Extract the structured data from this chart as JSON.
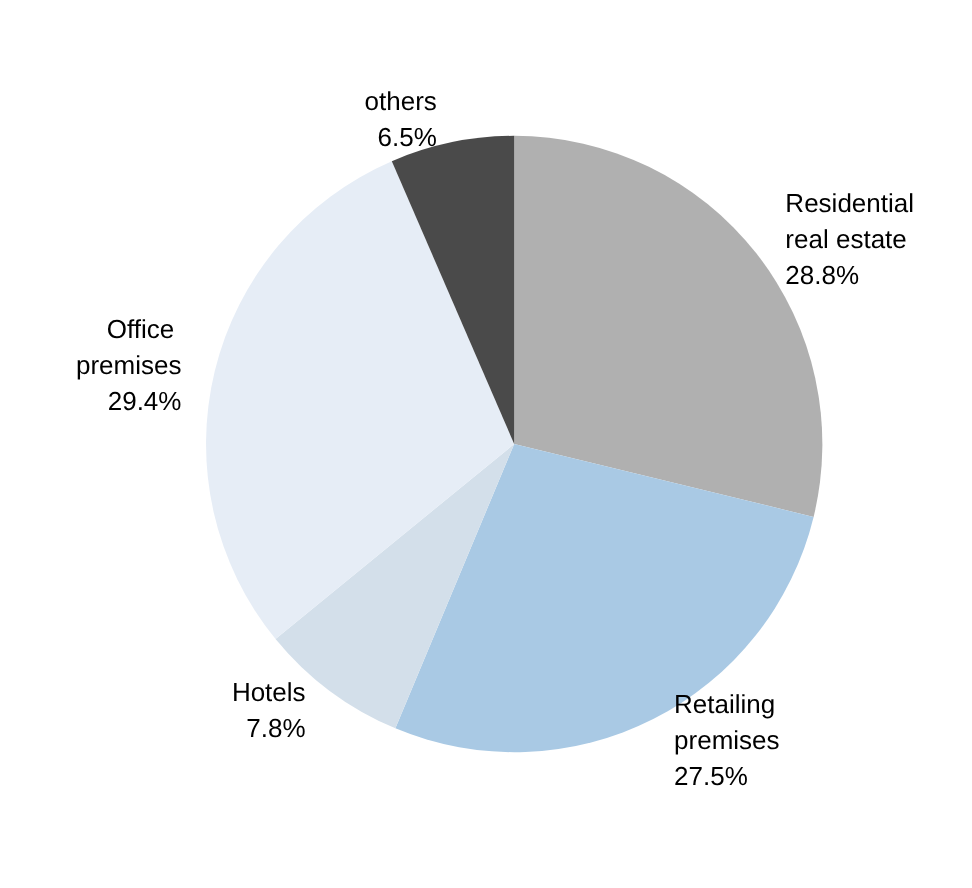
{
  "chart_data": {
    "type": "pie",
    "categories": [
      "Residential real estate",
      "Retailing premises",
      "Hotels",
      "Office premises",
      "others"
    ],
    "values": [
      28.8,
      27.5,
      7.8,
      29.4,
      6.5
    ],
    "value_labels": [
      "28.8%",
      "27.5%",
      "7.8%",
      "29.4%",
      "6.5%"
    ],
    "colors": [
      "#b0b0b0",
      "#a9c9e4",
      "#d3dfea",
      "#e6edf6",
      "#4a4a4a"
    ],
    "legend": false
  }
}
